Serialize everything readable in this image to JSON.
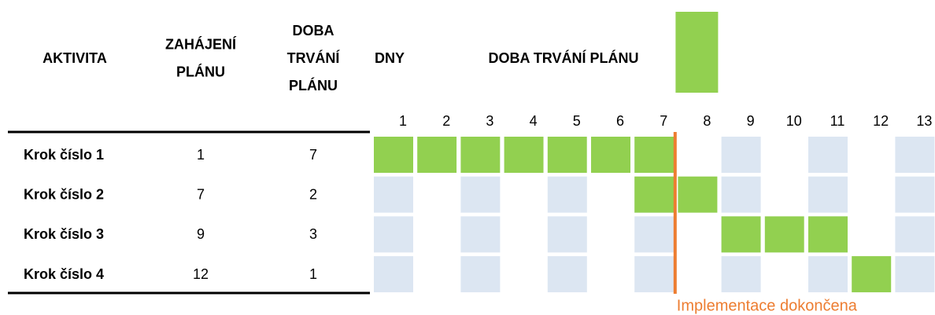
{
  "chart_data": {
    "type": "gantt",
    "headers": [
      [
        "AKTIVITA"
      ],
      [
        "ZAHÁJENÍ",
        "PLÁNU"
      ],
      [
        "DOBA",
        "TRVÁNÍ",
        "PLÁNU"
      ],
      [
        "DNY"
      ],
      [
        "DOBA TRVÁNÍ PLÁNU"
      ]
    ],
    "days": [
      1,
      2,
      3,
      4,
      5,
      6,
      7,
      8,
      9,
      10,
      11,
      12,
      13
    ],
    "tasks": [
      {
        "name": "Krok číslo 1",
        "start": 1,
        "duration": 7
      },
      {
        "name": "Krok číslo 2",
        "start": 7,
        "duration": 2
      },
      {
        "name": "Krok číslo 3",
        "start": 9,
        "duration": 3
      },
      {
        "name": "Krok číslo 4",
        "start": 12,
        "duration": 1
      }
    ],
    "color": "#92d050",
    "empty_color": "#dce6f2",
    "marker": {
      "label": "Implementace dokončena",
      "color": "#ed7d31"
    }
  }
}
